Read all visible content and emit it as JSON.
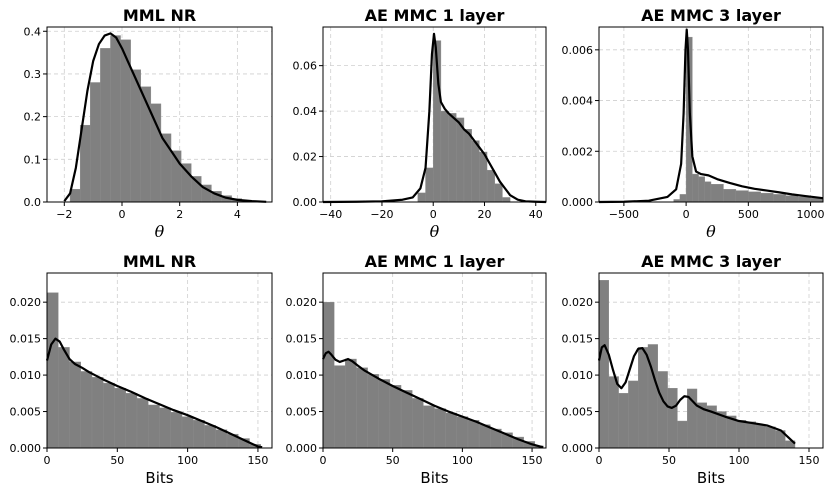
{
  "chart_data": [
    {
      "type": "histogram",
      "title": "MML NR",
      "xlabel": "θ",
      "xlim": [
        -2.6,
        5.2
      ],
      "ylim": [
        0,
        0.41
      ],
      "xticks": [
        -2,
        0,
        2,
        4
      ],
      "yticks": [
        0.0,
        0.1,
        0.2,
        0.3,
        0.4
      ],
      "ytick_labels": [
        "0.0",
        "0.1",
        "0.2",
        "0.3",
        "0.4"
      ],
      "bins": {
        "edges": [
          -1.8,
          -1.45,
          -1.1,
          -0.75,
          -0.4,
          -0.05,
          0.3,
          0.65,
          1.0,
          1.35,
          1.7,
          2.05,
          2.4,
          2.75,
          3.1,
          3.45,
          3.8,
          4.15,
          4.5,
          4.85
        ],
        "values": [
          0.03,
          0.18,
          0.28,
          0.36,
          0.39,
          0.38,
          0.31,
          0.27,
          0.23,
          0.16,
          0.12,
          0.09,
          0.06,
          0.04,
          0.025,
          0.015,
          0.008,
          0.004,
          0.002
        ]
      },
      "kde": {
        "x": [
          -2.0,
          -1.8,
          -1.6,
          -1.4,
          -1.2,
          -1.0,
          -0.8,
          -0.6,
          -0.4,
          -0.2,
          0.0,
          0.2,
          0.4,
          0.6,
          0.8,
          1.0,
          1.2,
          1.4,
          1.6,
          1.8,
          2.0,
          2.4,
          2.8,
          3.2,
          3.6,
          4.0,
          4.5,
          5.0
        ],
        "y": [
          0.002,
          0.02,
          0.08,
          0.17,
          0.26,
          0.33,
          0.37,
          0.39,
          0.395,
          0.385,
          0.36,
          0.33,
          0.3,
          0.27,
          0.24,
          0.21,
          0.18,
          0.15,
          0.13,
          0.11,
          0.09,
          0.06,
          0.035,
          0.02,
          0.01,
          0.005,
          0.002,
          0.0005
        ]
      }
    },
    {
      "type": "histogram",
      "title": "AE MMC 1 layer",
      "xlabel": "θ",
      "xlim": [
        -43,
        44
      ],
      "ylim": [
        0,
        0.077
      ],
      "xticks": [
        -40,
        -20,
        0,
        20,
        40
      ],
      "yticks": [
        0.0,
        0.02,
        0.04,
        0.06
      ],
      "ytick_labels": [
        "0.00",
        "0.02",
        "0.04",
        "0.06"
      ],
      "bins": {
        "edges": [
          -6,
          -3,
          0,
          3,
          6,
          9,
          12,
          15,
          18,
          21,
          24,
          27,
          30
        ],
        "values": [
          0.004,
          0.015,
          0.071,
          0.04,
          0.039,
          0.037,
          0.032,
          0.027,
          0.022,
          0.014,
          0.008,
          0.002
        ]
      },
      "kde": {
        "x": [
          -43,
          -30,
          -20,
          -12,
          -8,
          -5,
          -3,
          -1.5,
          -0.5,
          0.3,
          1.0,
          2.0,
          3.0,
          4.5,
          6,
          8,
          10,
          12,
          14,
          16,
          18,
          20,
          22,
          24,
          26,
          28,
          30,
          33,
          36,
          40,
          44
        ],
        "y": [
          0.0,
          0.0001,
          0.0003,
          0.001,
          0.002,
          0.006,
          0.015,
          0.04,
          0.065,
          0.074,
          0.068,
          0.052,
          0.044,
          0.041,
          0.039,
          0.037,
          0.035,
          0.032,
          0.03,
          0.027,
          0.024,
          0.021,
          0.017,
          0.013,
          0.009,
          0.006,
          0.003,
          0.001,
          0.0003,
          0.0001,
          0.0
        ]
      }
    },
    {
      "type": "histogram",
      "title": "AE MMC 3 layer",
      "xlabel": "θ",
      "xlim": [
        -700,
        1100
      ],
      "ylim": [
        0,
        0.0069
      ],
      "xticks": [
        -500,
        0,
        500,
        1000
      ],
      "yticks": [
        0.0,
        0.002,
        0.004,
        0.006
      ],
      "ytick_labels": [
        "0.000",
        "0.002",
        "0.004",
        "0.006"
      ],
      "bins": {
        "edges": [
          -100,
          -50,
          0,
          50,
          100,
          150,
          200,
          300,
          400,
          500,
          600,
          700,
          800,
          900,
          1000,
          1100
        ],
        "values": [
          0.0001,
          0.0003,
          0.0065,
          0.0011,
          0.001,
          0.0008,
          0.0007,
          0.0005,
          0.00045,
          0.0004,
          0.00035,
          0.0003,
          0.00025,
          0.0002,
          0.00015
        ]
      },
      "kde": {
        "x": [
          -700,
          -500,
          -300,
          -150,
          -80,
          -40,
          -20,
          -5,
          5,
          15,
          30,
          50,
          80,
          120,
          180,
          250,
          350,
          450,
          550,
          650,
          750,
          850,
          950,
          1050,
          1100
        ],
        "y": [
          0.0,
          1e-05,
          5e-05,
          0.0002,
          0.0005,
          0.0015,
          0.0035,
          0.006,
          0.0068,
          0.006,
          0.0035,
          0.0018,
          0.0012,
          0.0011,
          0.00105,
          0.0009,
          0.00075,
          0.00062,
          0.00052,
          0.00045,
          0.00038,
          0.0003,
          0.00024,
          0.00018,
          0.00015
        ]
      }
    },
    {
      "type": "histogram",
      "title": "MML NR",
      "xlabel": "Bits",
      "xlim": [
        0,
        160
      ],
      "ylim": [
        0,
        0.024
      ],
      "xticks": [
        0,
        50,
        100,
        150
      ],
      "yticks": [
        0.0,
        0.005,
        0.01,
        0.015,
        0.02
      ],
      "ytick_labels": [
        "0.000",
        "0.005",
        "0.010",
        "0.015",
        "0.020"
      ],
      "bins": {
        "edges": [
          0,
          8,
          16,
          24,
          32,
          40,
          48,
          56,
          64,
          72,
          80,
          88,
          96,
          104,
          112,
          120,
          128,
          136,
          144,
          152
        ],
        "values": [
          0.0213,
          0.0138,
          0.0118,
          0.0105,
          0.0097,
          0.0089,
          0.0082,
          0.0075,
          0.0068,
          0.0059,
          0.0055,
          0.0049,
          0.0043,
          0.0038,
          0.0031,
          0.0025,
          0.0019,
          0.0013,
          0.0005
        ]
      },
      "kde": {
        "x": [
          0,
          3,
          6,
          9,
          12,
          16,
          20,
          25,
          30,
          40,
          50,
          60,
          70,
          80,
          90,
          100,
          110,
          120,
          130,
          140,
          150,
          153
        ],
        "y": [
          0.012,
          0.0142,
          0.015,
          0.0146,
          0.0135,
          0.0122,
          0.0115,
          0.011,
          0.0104,
          0.0094,
          0.0085,
          0.0077,
          0.0068,
          0.006,
          0.0052,
          0.0045,
          0.0037,
          0.0029,
          0.002,
          0.0011,
          0.0002,
          0.0001
        ]
      }
    },
    {
      "type": "histogram",
      "title": "AE MMC 1 layer",
      "xlabel": "Bits",
      "xlim": [
        0,
        160
      ],
      "ylim": [
        0,
        0.024
      ],
      "xticks": [
        0,
        50,
        100,
        150
      ],
      "yticks": [
        0.0,
        0.005,
        0.01,
        0.015,
        0.02
      ],
      "ytick_labels": [
        "0.000",
        "0.005",
        "0.010",
        "0.015",
        "0.020"
      ],
      "bins": {
        "edges": [
          0,
          8,
          16,
          24,
          32,
          40,
          48,
          56,
          64,
          72,
          80,
          88,
          96,
          104,
          112,
          120,
          128,
          136,
          144,
          152,
          158
        ],
        "values": [
          0.02,
          0.0113,
          0.0122,
          0.011,
          0.0101,
          0.0094,
          0.0086,
          0.0079,
          0.0068,
          0.0058,
          0.0054,
          0.0048,
          0.0043,
          0.0038,
          0.0032,
          0.0026,
          0.0021,
          0.0015,
          0.0009,
          0.0003
        ]
      },
      "kde": {
        "x": [
          0,
          2,
          4,
          6,
          9,
          12,
          15,
          18,
          21,
          25,
          30,
          40,
          50,
          60,
          70,
          80,
          90,
          100,
          110,
          120,
          130,
          140,
          150,
          158
        ],
        "y": [
          0.0122,
          0.013,
          0.0132,
          0.0128,
          0.0121,
          0.0118,
          0.012,
          0.0122,
          0.0119,
          0.0113,
          0.0106,
          0.0095,
          0.0085,
          0.0076,
          0.0067,
          0.0058,
          0.005,
          0.0043,
          0.0036,
          0.0028,
          0.002,
          0.0012,
          0.0005,
          0.0001
        ]
      }
    },
    {
      "type": "histogram",
      "title": "AE MMC 3 layer",
      "xlabel": "Bits",
      "xlim": [
        0,
        160
      ],
      "ylim": [
        0,
        0.024
      ],
      "xticks": [
        0,
        50,
        100,
        150
      ],
      "yticks": [
        0.0,
        0.005,
        0.01,
        0.015,
        0.02
      ],
      "ytick_labels": [
        "0.000",
        "0.005",
        "0.010",
        "0.015",
        "0.020"
      ],
      "bins": {
        "edges": [
          0,
          7,
          14,
          21,
          28,
          35,
          42,
          49,
          56,
          63,
          70,
          77,
          84,
          91,
          98,
          105,
          112,
          119,
          126,
          133,
          140
        ],
        "values": [
          0.023,
          0.0098,
          0.0075,
          0.0092,
          0.0138,
          0.0142,
          0.0105,
          0.0082,
          0.0037,
          0.0081,
          0.0062,
          0.0058,
          0.005,
          0.0044,
          0.0038,
          0.0036,
          0.0032,
          0.0029,
          0.0024,
          0.001
        ]
      },
      "kde": {
        "x": [
          0,
          2,
          4,
          7,
          10,
          13,
          16,
          19,
          22,
          25,
          28,
          31,
          34,
          37,
          40,
          43,
          46,
          49,
          52,
          55,
          58,
          61,
          64,
          67,
          70,
          75,
          80,
          90,
          100,
          110,
          120,
          130,
          135,
          140
        ],
        "y": [
          0.012,
          0.0138,
          0.0141,
          0.0128,
          0.0107,
          0.0088,
          0.0082,
          0.009,
          0.0108,
          0.0126,
          0.0136,
          0.0137,
          0.0128,
          0.0112,
          0.0093,
          0.0076,
          0.0064,
          0.0057,
          0.0055,
          0.0058,
          0.0066,
          0.0071,
          0.007,
          0.0064,
          0.0058,
          0.0053,
          0.005,
          0.0043,
          0.0037,
          0.0034,
          0.0031,
          0.0024,
          0.0015,
          0.0006
        ]
      }
    }
  ]
}
